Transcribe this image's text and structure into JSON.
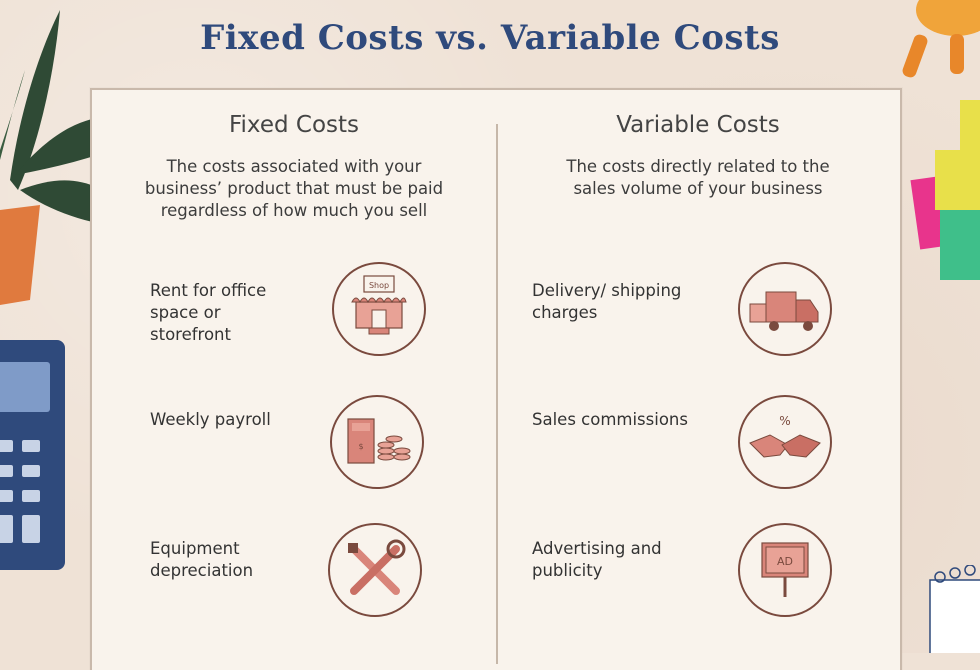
{
  "title": "Fixed Costs vs. Variable Costs",
  "fixed": {
    "heading": "Fixed Costs",
    "description": "The costs associated with your business’ product that must be paid regardless of how much you sell",
    "items": [
      {
        "label": "Rent for office space or storefront",
        "icon": "storefront-icon"
      },
      {
        "label": "Weekly payroll",
        "icon": "money-coins-icon"
      },
      {
        "label": "Equipment depreciation",
        "icon": "tools-icon"
      }
    ]
  },
  "variable": {
    "heading": "Variable Costs",
    "description": "The costs directly related to the sales volume of your business",
    "items": [
      {
        "label": "Delivery/ shipping charges",
        "icon": "delivery-truck-icon"
      },
      {
        "label": "Sales commissions",
        "icon": "handshake-icon"
      },
      {
        "label": "Advertising and publicity",
        "icon": "ad-sign-icon"
      }
    ]
  },
  "icon_text": {
    "shop_sign": "Shop",
    "percent": "%",
    "ad": "AD"
  },
  "colors": {
    "title": "#2f4a7c",
    "icon_fill": "#d9857a",
    "icon_stroke": "#7a4a3e",
    "panel": "#f9f3ec",
    "background": "#efe2d6"
  }
}
